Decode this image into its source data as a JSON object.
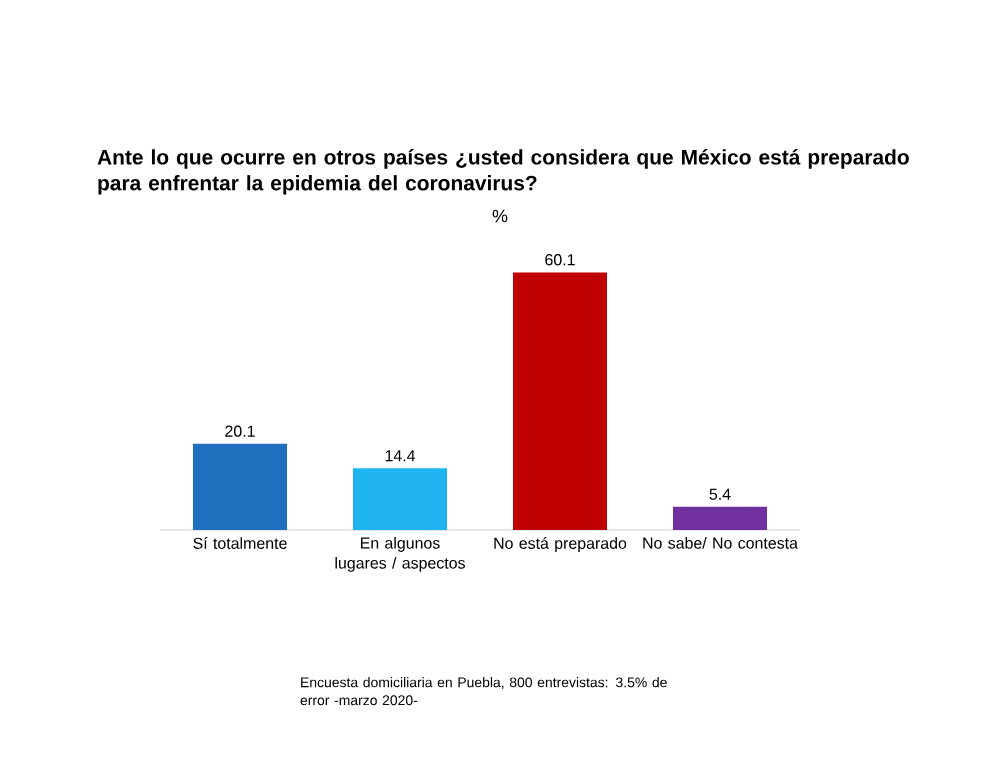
{
  "chart_data": {
    "type": "bar",
    "title": "Ante lo que ocurre en otros países ¿usted considera que México está preparado para enfrentar la epidemia del coronavirus?",
    "subtitle": "%",
    "categories": [
      "Sí totalmente",
      "En algunos lugares / aspectos",
      "No está preparado",
      "No sabe/ No contesta"
    ],
    "values": [
      20.1,
      14.4,
      60.1,
      5.4
    ],
    "colors": [
      "#1f6fbf",
      "#1fb4f0",
      "#c00000",
      "#7030a0"
    ],
    "data_labels": true,
    "annotations": [
      "Encuesta domiciliaria en Puebla, 800 entrevistas: 3.5% de error -marzo 2020-"
    ]
  }
}
